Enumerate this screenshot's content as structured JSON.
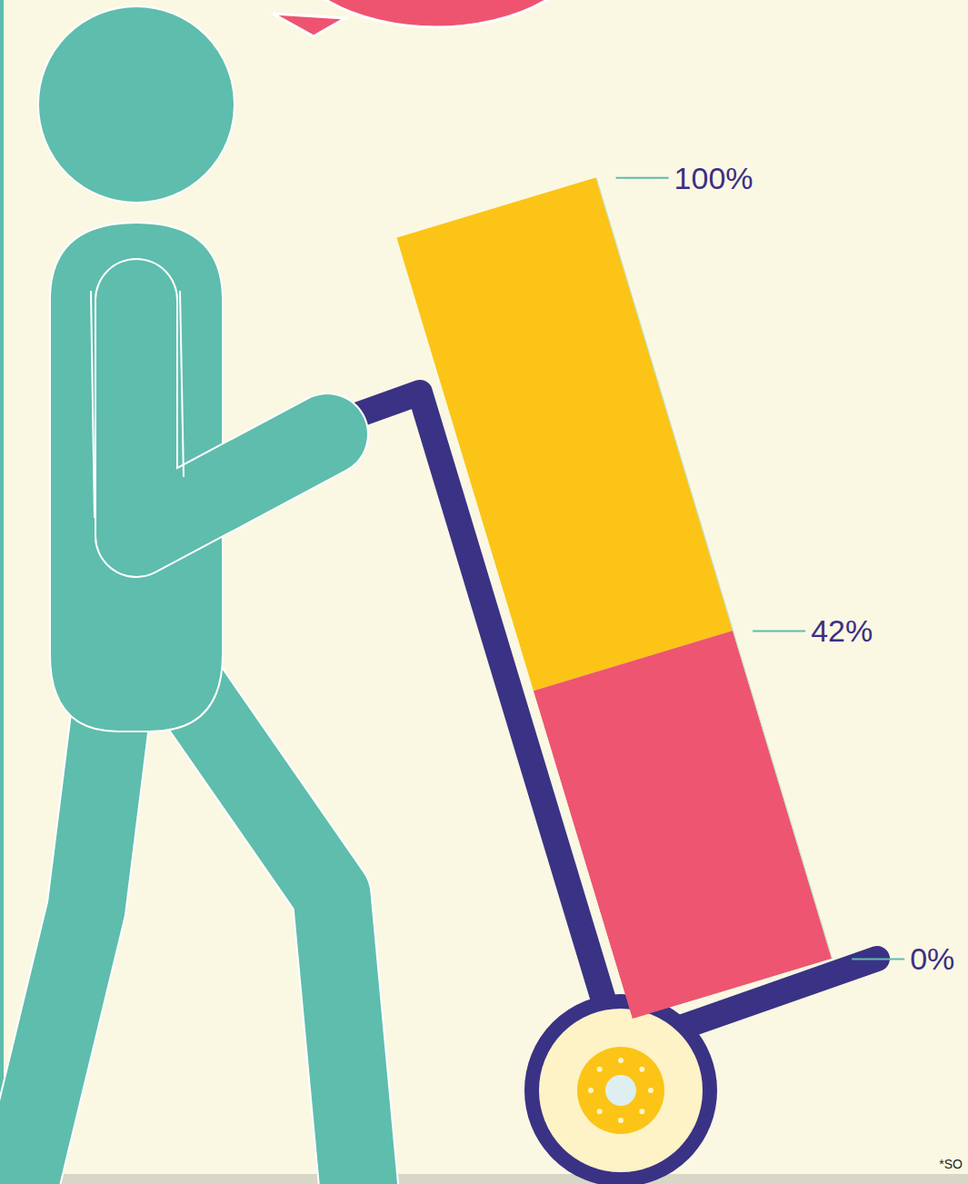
{
  "chart_data": {
    "type": "bar",
    "categories": [
      null
    ],
    "series": [
      {
        "color": "#EE5470",
        "values": [
          42
        ]
      },
      {
        "color": "#FCC416",
        "values": [
          58
        ]
      }
    ],
    "stacked": true,
    "ylim": [
      0,
      100
    ],
    "yticks": [
      {
        "value": 0,
        "label": "0%"
      },
      {
        "value": 42,
        "label": "42%"
      },
      {
        "value": 100,
        "label": "100%"
      }
    ],
    "tick_labels": "y",
    "annotations": [
      "*SO"
    ]
  }
}
